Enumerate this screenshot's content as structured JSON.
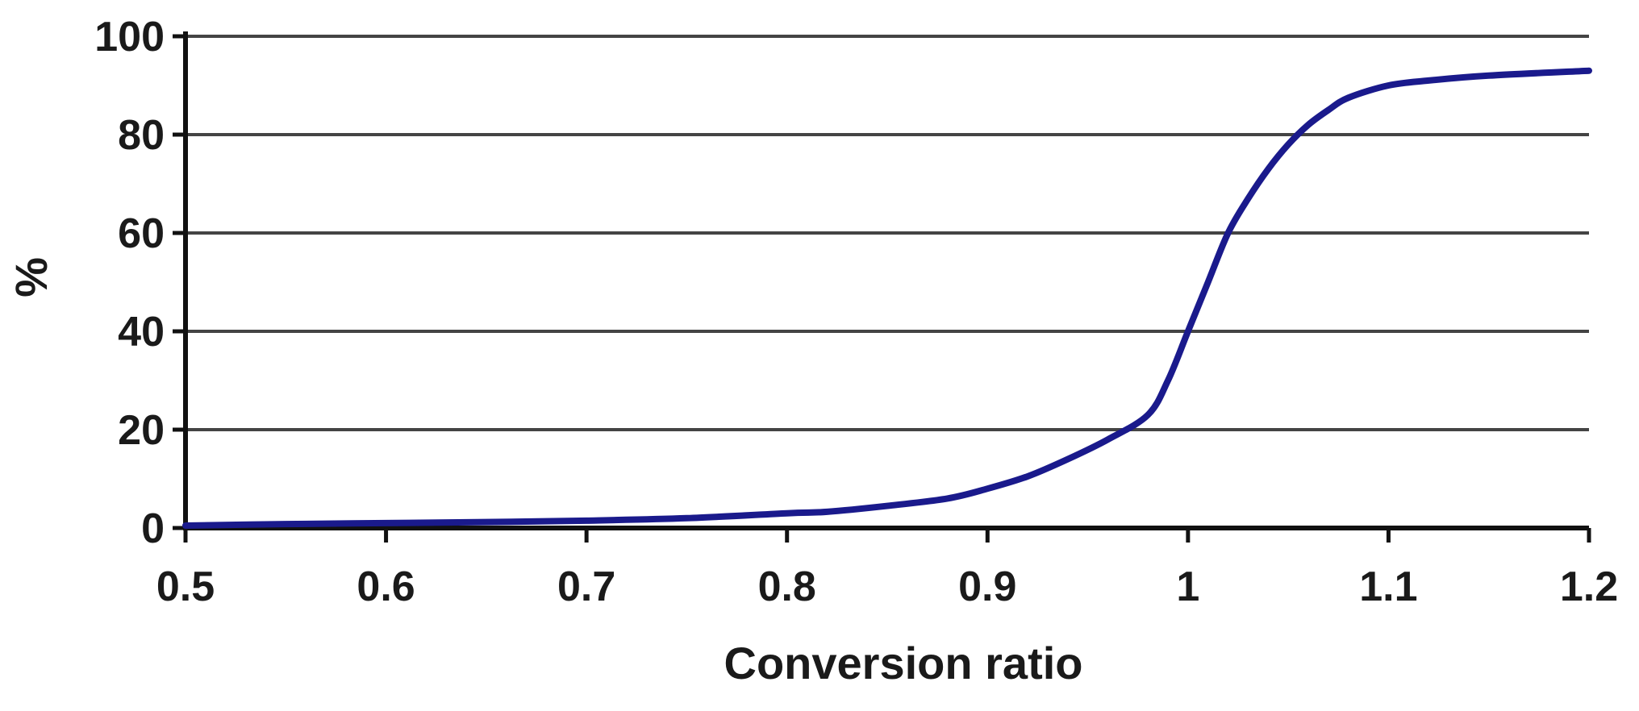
{
  "chart_data": {
    "type": "line",
    "title": "",
    "xlabel": "Conversion ratio",
    "ylabel": "%",
    "xlim": [
      0.5,
      1.2
    ],
    "ylim": [
      0,
      100
    ],
    "x_ticks": [
      0.5,
      0.6,
      0.7,
      0.8,
      0.9,
      1.0,
      1.1,
      1.2
    ],
    "x_tick_labels": [
      "0.5",
      "0.6",
      "0.7",
      "0.8",
      "0.9",
      "1",
      "1.1",
      "1.2"
    ],
    "y_ticks": [
      0,
      20,
      40,
      60,
      80,
      100
    ],
    "y_tick_labels": [
      "0",
      "20",
      "40",
      "60",
      "80",
      "100"
    ],
    "grid": "horizontal",
    "legend": "none",
    "colors": {
      "line": "#1a1a8c",
      "grid": "#444444",
      "axis": "#111111"
    },
    "series": [
      {
        "x": [
          0.5,
          0.55,
          0.6,
          0.65,
          0.7,
          0.75,
          0.8,
          0.82,
          0.85,
          0.88,
          0.9,
          0.92,
          0.94,
          0.96,
          0.98,
          0.99,
          1.0,
          1.01,
          1.02,
          1.03,
          1.04,
          1.05,
          1.06,
          1.07,
          1.08,
          1.1,
          1.12,
          1.15,
          1.2
        ],
        "y": [
          0.5,
          0.8,
          1.0,
          1.2,
          1.5,
          2.0,
          3.0,
          3.3,
          4.5,
          6.0,
          8.0,
          10.5,
          14.0,
          18.0,
          23.0,
          30.0,
          40.0,
          50.0,
          60.0,
          67.0,
          73.0,
          78.0,
          82.0,
          85.0,
          87.5,
          90.0,
          91.0,
          92.0,
          93.0
        ]
      }
    ]
  }
}
